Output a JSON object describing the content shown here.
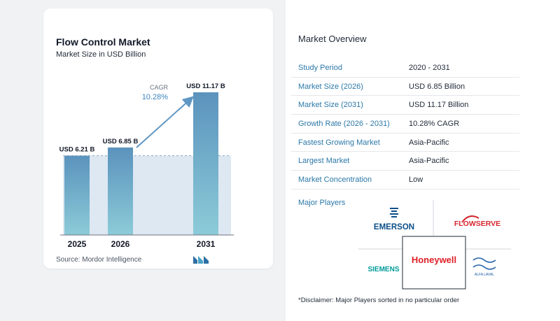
{
  "chart": {
    "title": "Flow Control Market",
    "subtitle": "Market Size in USD Billion",
    "source": "Source:  Mordor Intelligence",
    "cagr_label": "CAGR",
    "cagr_value": "10.28%"
  },
  "chart_data": {
    "type": "bar",
    "title": "Flow Control Market",
    "subtitle": "Market Size in USD Billion",
    "categories": [
      "2025",
      "2026",
      "2031"
    ],
    "values": [
      6.21,
      6.85,
      11.17
    ],
    "value_labels": [
      "USD 6.21 B",
      "USD 6.85 B",
      "USD 11.17 B"
    ],
    "xlabel": "",
    "ylabel": "",
    "ylim": [
      0,
      11.17
    ],
    "grid": false,
    "annotation": "CAGR 10.28%",
    "colors": {
      "bar_top": "#5b93bd",
      "bar_bottom": "#8ccbd8",
      "band": "#dde8f2",
      "arrow": "#5e97c4",
      "cagr_text": "#3d86bf"
    }
  },
  "overview": {
    "title": "Market Overview",
    "rows": [
      {
        "label": "Study Period",
        "value": "2020 - 2031"
      },
      {
        "label": "Market Size (2026)",
        "value": "USD 6.85 Billion"
      },
      {
        "label": "Market Size (2031)",
        "value": "USD 11.17 Billion"
      },
      {
        "label": "Growth Rate (2026 - 2031)",
        "value": "10.28% CAGR"
      },
      {
        "label": "Fastest Growing Market",
        "value": "Asia-Pacific"
      },
      {
        "label": "Largest Market",
        "value": "Asia-Pacific"
      },
      {
        "label": "Market Concentration",
        "value": "Low"
      }
    ]
  },
  "players": {
    "title": "Major Players",
    "logos": [
      "EMERSON",
      "FLOWSERVE",
      "SIEMENS",
      "Honeywell",
      "ALFA LAVAL"
    ],
    "disclaimer": "*Disclaimer: Major Players sorted in no particular order"
  },
  "colors": {
    "accent": "#2b78a8",
    "emerson": "#0b4f8a",
    "flowserve": "#d6262e",
    "siemens": "#009999",
    "honeywell": "#e01f26",
    "alfa": "#1f5ea8"
  }
}
